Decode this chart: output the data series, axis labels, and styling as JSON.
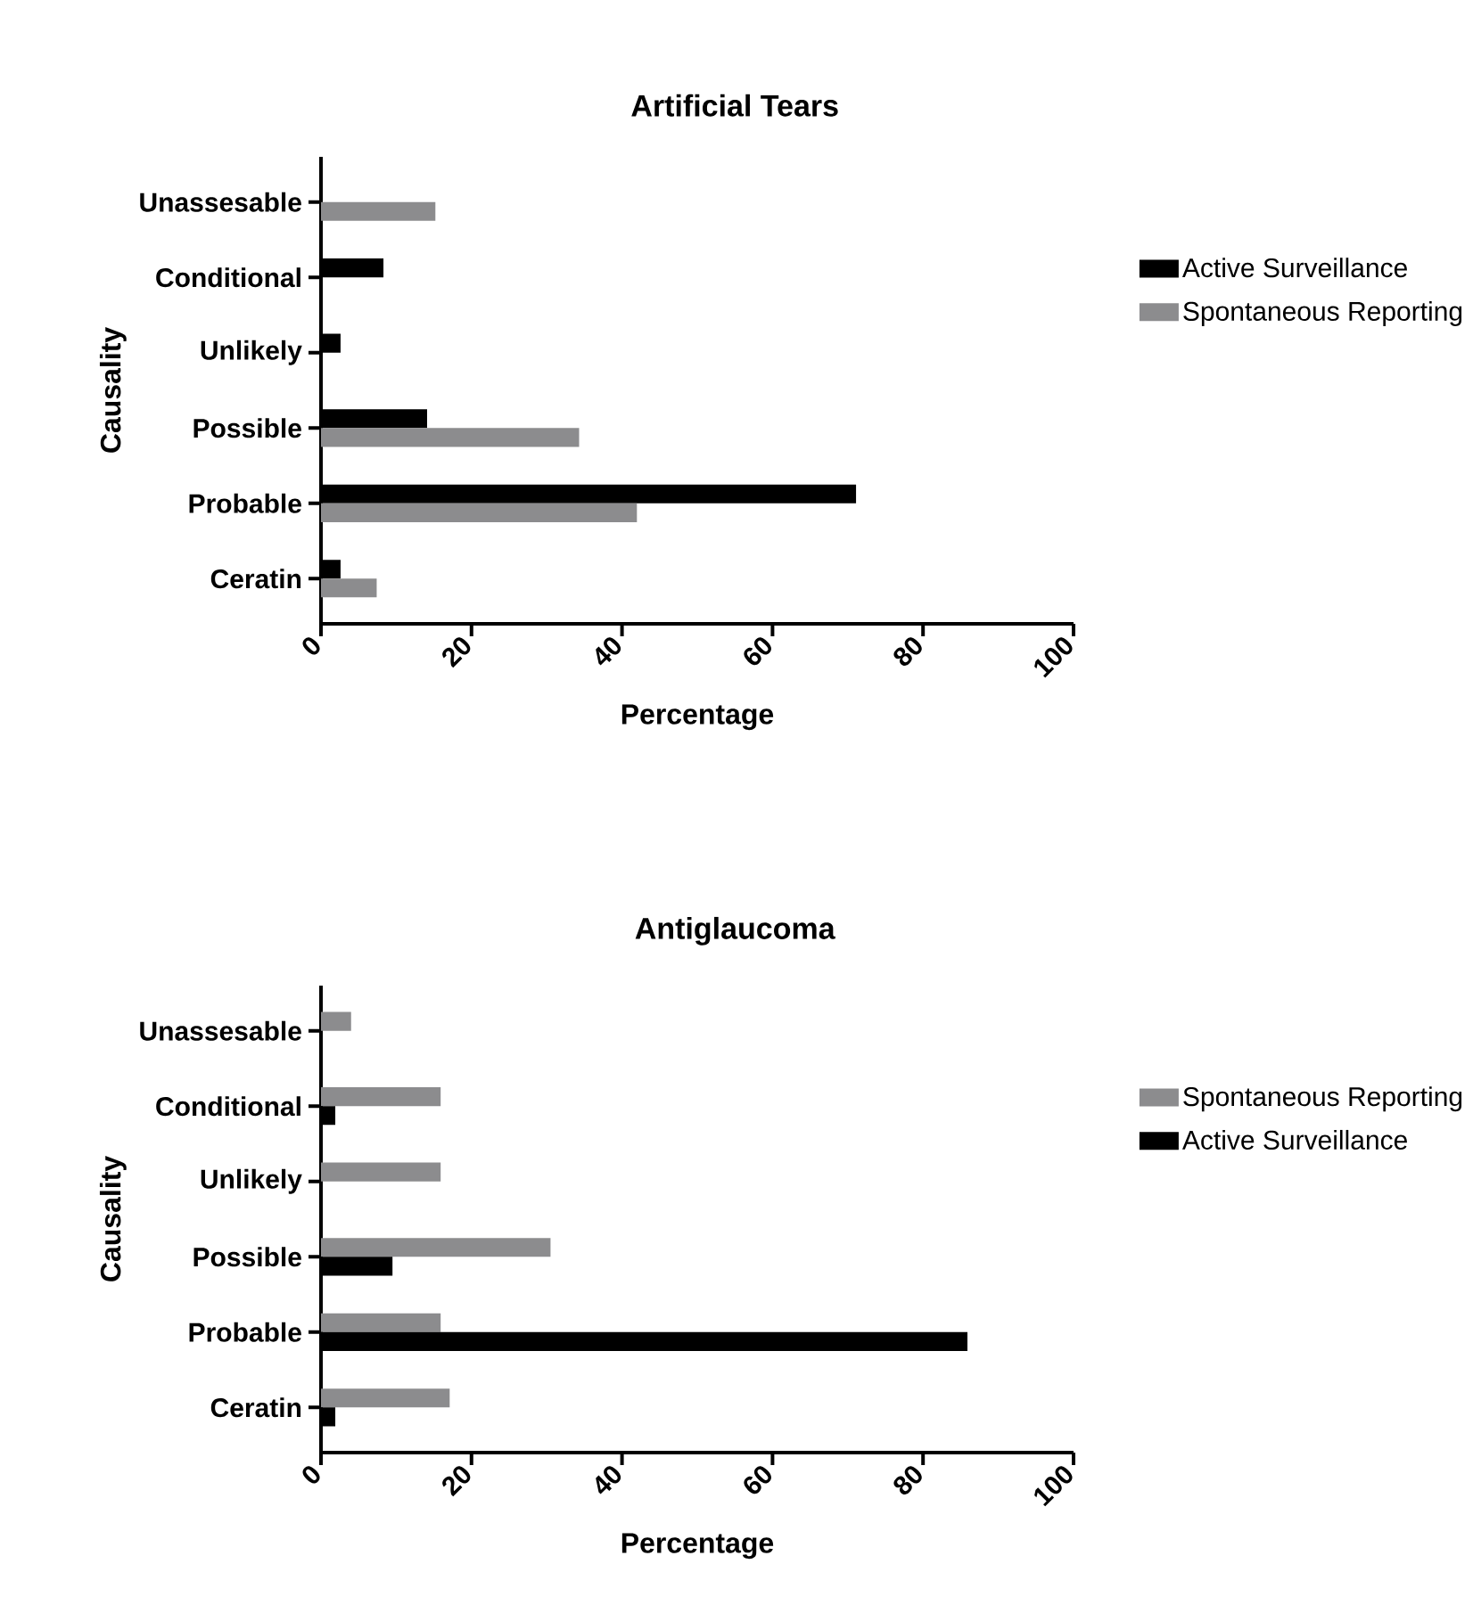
{
  "chart_data": [
    {
      "type": "bar",
      "orientation": "horizontal",
      "title": "Artificial Tears",
      "xlabel": "Percentage",
      "ylabel": "Causality",
      "categories": [
        "Unassesable",
        "Conditional",
        "Unlikely",
        "Possible",
        "Probable",
        "Ceratin"
      ],
      "series": [
        {
          "name": "Active Surveillance",
          "color": "#000000",
          "values": [
            0,
            8.3,
            2.6,
            14.1,
            71.1,
            2.6
          ]
        },
        {
          "name": "Spontaneous Reporting",
          "color": "#8c8c8e",
          "values": [
            15.2,
            0,
            0,
            34.3,
            42.0,
            7.4
          ]
        }
      ],
      "xlim": [
        0,
        100
      ],
      "xticks": [
        0,
        20,
        40,
        60,
        80,
        100
      ],
      "legend": "right"
    },
    {
      "type": "bar",
      "orientation": "horizontal",
      "title": "Antiglaucoma",
      "xlabel": "Percentage",
      "ylabel": "Causality",
      "categories": [
        "Unassesable",
        "Conditional",
        "Unlikely",
        "Possible",
        "Probable",
        "Ceratin"
      ],
      "series": [
        {
          "name": "Spontaneous Reporting",
          "color": "#8c8c8e",
          "values": [
            4.0,
            15.9,
            15.9,
            30.5,
            15.9,
            17.1
          ]
        },
        {
          "name": "Active Surveillance",
          "color": "#000000",
          "values": [
            0,
            1.9,
            0,
            9.5,
            85.9,
            1.9
          ]
        }
      ],
      "xlim": [
        0,
        100
      ],
      "xticks": [
        0,
        20,
        40,
        60,
        80,
        100
      ],
      "legend": "right"
    }
  ]
}
